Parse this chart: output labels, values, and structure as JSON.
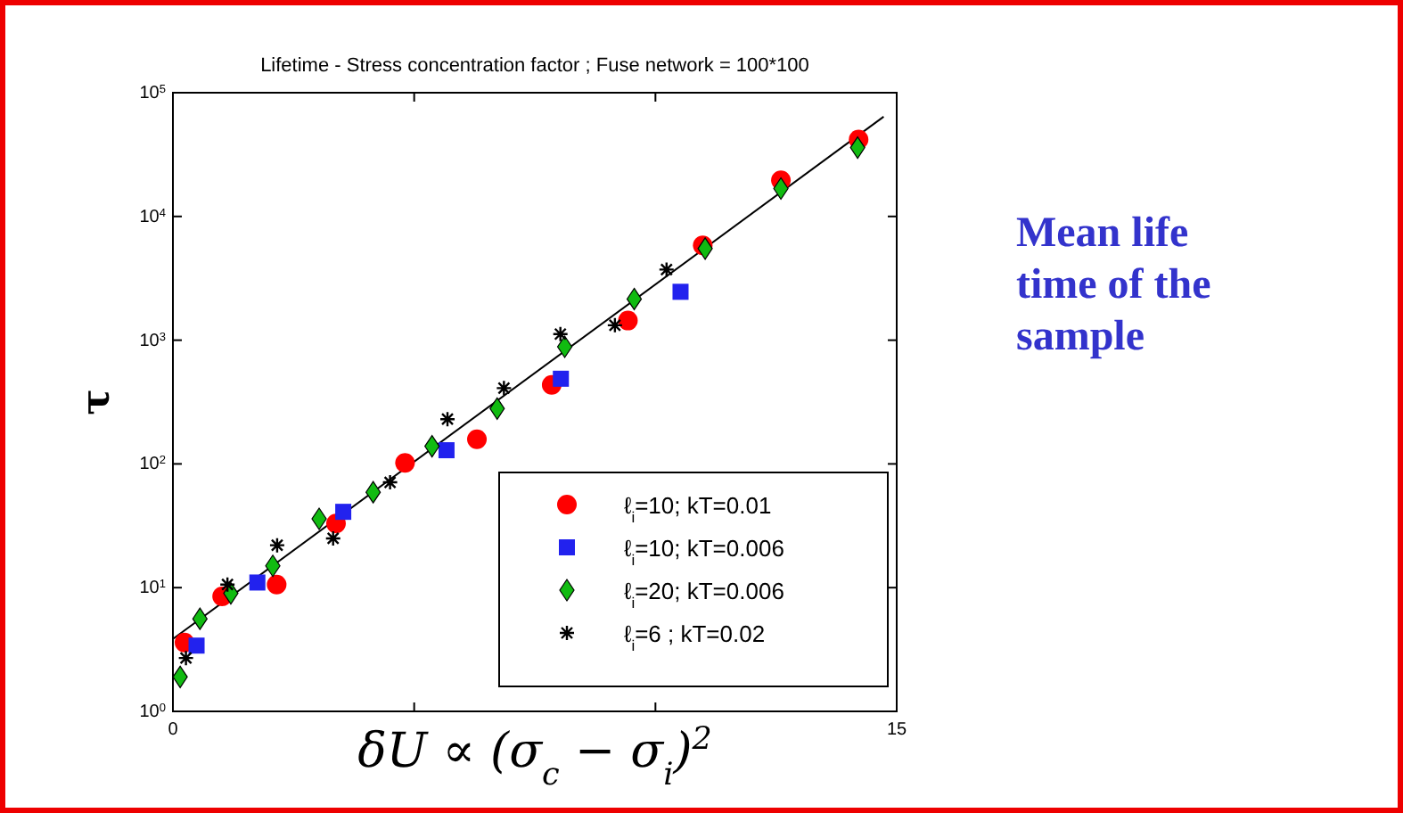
{
  "chart_data": {
    "type": "scatter",
    "title": "Lifetime - Stress concentration factor ; Fuse network = 100*100",
    "xlabel": "δU ∝ (σ$_{c}$ − σ$_{i}$)$^{2}$",
    "ylabel": "τ",
    "log": "y",
    "xlim": [
      0,
      15
    ],
    "xticks": [
      0,
      {
        "value": 5,
        "label": null
      },
      {
        "value": 10,
        "label": null
      },
      15
    ],
    "ylim": [
      1,
      100000
    ],
    "yticks": [
      {
        "value": 1,
        "label": "10$^{0}$"
      },
      {
        "value": 10,
        "label": "10$^{1}$"
      },
      {
        "value": 100,
        "label": "10$^{2}$"
      },
      {
        "value": 1000,
        "label": "10$^{3}$"
      },
      {
        "value": 10000,
        "label": "10$^{4}$"
      },
      {
        "value": 100000,
        "label": "10$^{5}$"
      }
    ],
    "grid": false,
    "legend": "bottom right",
    "annotations": [
      "Mean life time of the sample"
    ],
    "series": [
      {
        "name": "ℓ$_{i}$=10; kT=0.01",
        "color": "#ff0000",
        "marker": "circle",
        "x": [
          0.24,
          1.02,
          2.15,
          3.38,
          4.81,
          6.3,
          7.85,
          9.43,
          10.98,
          12.6,
          14.21
        ],
        "values": [
          3.6,
          8.5,
          10.6,
          33,
          102,
          158,
          435,
          1440,
          5840,
          19600,
          41800
        ]
      },
      {
        "name": "ℓ$_{i}$=10; kT=0.006",
        "color": "#2222ee",
        "marker": "square",
        "x": [
          0.49,
          1.75,
          3.53,
          5.67,
          8.04,
          10.52
        ],
        "values": [
          3.4,
          11,
          41,
          129,
          488,
          2460
        ]
      },
      {
        "name": "ℓ$_{i}$=20; kT=0.006",
        "color": "#11bb11",
        "marker": "diamond",
        "x": [
          0.15,
          0.56,
          1.2,
          2.07,
          3.03,
          4.15,
          5.37,
          6.72,
          8.12,
          9.56,
          11.03,
          12.6,
          14.19
        ],
        "values": [
          1.9,
          5.6,
          9,
          15,
          36,
          59,
          139,
          280,
          885,
          2150,
          5500,
          16800,
          36000
        ]
      },
      {
        "name": "ℓ$_{i}$=6 ;  kT=0.02",
        "color": "#000000",
        "marker": "cross",
        "x": [
          0.27,
          1.13,
          2.16,
          3.32,
          4.5,
          5.69,
          6.86,
          8.03,
          9.16,
          10.23
        ],
        "values": [
          2.7,
          10.6,
          22,
          25,
          71,
          230,
          410,
          1120,
          1320,
          3720
        ]
      },
      {
        "type": "line",
        "color": "#000000",
        "marker": "none",
        "line_style": "solid",
        "x": [
          0,
          14.73
        ],
        "values": [
          3.85,
          64000
        ]
      }
    ]
  }
}
